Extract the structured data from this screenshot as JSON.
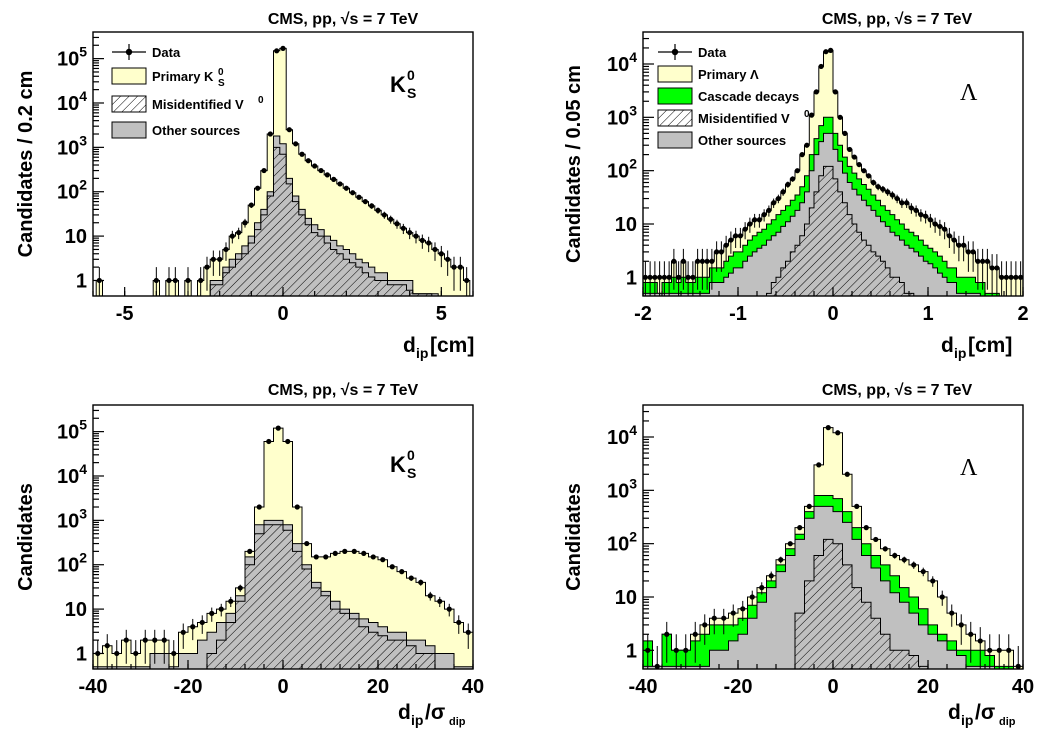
{
  "page_title_each": "CMS, pp, √s = 7 TeV",
  "colors": {
    "primary": "#ffffcc",
    "cascade": "#00ff00",
    "other": "#c0c0c0",
    "misid_hatch": "#000000",
    "data": "#000000"
  },
  "chart_data": [
    {
      "type": "area",
      "id": "ks-dip",
      "title": "CMS, pp, √s = 7 TeV",
      "species_label": "K0S",
      "xlabel_main": "d",
      "xlabel_sub": "ip",
      "xlabel_tail": " [cm]",
      "ylabel": "Candidates / 0.2 cm",
      "xlim": [
        -6,
        6
      ],
      "ylog": true,
      "ylim_exp": [
        -0.35,
        5.6
      ],
      "xticks": [
        -5,
        0,
        5
      ],
      "yticks": [
        "1",
        "10",
        "10^2",
        "10^3",
        "10^4",
        "10^5"
      ],
      "legend": [
        "Data",
        "Primary K0S",
        "Misidentified V0",
        "Other sources"
      ],
      "x": [
        -5.8,
        -5.6,
        -5.4,
        -5.2,
        -5.0,
        -4.8,
        -4.6,
        -4.4,
        -4.2,
        -4.0,
        -3.8,
        -3.6,
        -3.4,
        -3.2,
        -3.0,
        -2.8,
        -2.6,
        -2.4,
        -2.2,
        -2.0,
        -1.8,
        -1.6,
        -1.4,
        -1.2,
        -1.0,
        -0.8,
        -0.6,
        -0.4,
        -0.2,
        0.0,
        0.2,
        0.4,
        0.6,
        0.8,
        1.0,
        1.2,
        1.4,
        1.6,
        1.8,
        2.0,
        2.2,
        2.4,
        2.6,
        2.8,
        3.0,
        3.2,
        3.4,
        3.6,
        3.8,
        4.0,
        4.2,
        4.4,
        4.6,
        4.8,
        5.0,
        5.2,
        5.4,
        5.6,
        5.8
      ],
      "primary_total": [
        1,
        0,
        0,
        0,
        0,
        0,
        0,
        0,
        0,
        1,
        0,
        1,
        1,
        0,
        1,
        0,
        1,
        2,
        3,
        3,
        5,
        10,
        12,
        20,
        50,
        120,
        300,
        2000,
        150000,
        170000,
        2500,
        1200,
        700,
        500,
        380,
        300,
        240,
        190,
        150,
        120,
        95,
        75,
        60,
        48,
        38,
        30,
        24,
        19,
        15,
        12,
        10,
        8,
        7,
        5,
        4,
        3,
        2,
        2,
        1
      ],
      "other_total": [
        0,
        0,
        0,
        0,
        0,
        0,
        0,
        0,
        0,
        0,
        0,
        0,
        0,
        0,
        0,
        0,
        0,
        0,
        1,
        1,
        2,
        3,
        4,
        6,
        10,
        20,
        40,
        100,
        1800,
        1200,
        200,
        80,
        40,
        25,
        18,
        14,
        10,
        8,
        6,
        5,
        4,
        3,
        2.5,
        2,
        1.5,
        1.5,
        1,
        1,
        1,
        1,
        0.5,
        0.5,
        0.5,
        0.5,
        0,
        0,
        0,
        0,
        0
      ],
      "misid": [
        0,
        0,
        0,
        0,
        0,
        0,
        0,
        0,
        0,
        0,
        0,
        0,
        0,
        0,
        0,
        0,
        0,
        0,
        0.8,
        0.8,
        1.5,
        2,
        3,
        4,
        7,
        14,
        30,
        80,
        1000,
        700,
        150,
        60,
        30,
        18,
        12,
        10,
        7,
        5,
        4,
        3,
        2.5,
        2,
        1.5,
        1.2,
        1,
        1,
        0.8,
        0.8,
        0.8,
        0.6,
        0.5,
        0.5,
        0.5,
        0,
        0,
        0,
        0,
        0,
        0
      ],
      "data": [
        1,
        0,
        0,
        0,
        0,
        0,
        0,
        0,
        0,
        1,
        0,
        1,
        1,
        0,
        1,
        0,
        1,
        2,
        3,
        3,
        5,
        10,
        12,
        20,
        50,
        120,
        300,
        2000,
        150000,
        170000,
        2500,
        1200,
        700,
        500,
        380,
        300,
        240,
        190,
        150,
        120,
        95,
        75,
        60,
        48,
        38,
        30,
        24,
        19,
        15,
        12,
        10,
        8,
        7,
        5,
        4,
        3,
        2,
        2,
        1
      ]
    },
    {
      "type": "area",
      "id": "lambda-dip",
      "title": "CMS, pp, √s = 7 TeV",
      "species_label": "Λ",
      "xlabel_main": "d",
      "xlabel_sub": "ip",
      "xlabel_tail": " [cm]",
      "ylabel": "Candidates / 0.05 cm",
      "xlim": [
        -2,
        2
      ],
      "ylog": true,
      "ylim_exp": [
        -0.35,
        4.6
      ],
      "xticks": [
        -2,
        -1,
        0,
        1,
        2
      ],
      "yticks": [
        "1",
        "10",
        "10^2",
        "10^3",
        "10^4"
      ],
      "legend": [
        "Data",
        "Primary Λ",
        "Cascade decays",
        "Misidentified V0",
        "Other sources"
      ],
      "x": [
        -1.975,
        -1.925,
        -1.875,
        -1.825,
        -1.775,
        -1.725,
        -1.675,
        -1.625,
        -1.575,
        -1.525,
        -1.475,
        -1.425,
        -1.375,
        -1.325,
        -1.275,
        -1.225,
        -1.175,
        -1.125,
        -1.075,
        -1.025,
        -0.975,
        -0.925,
        -0.875,
        -0.825,
        -0.775,
        -0.725,
        -0.675,
        -0.625,
        -0.575,
        -0.525,
        -0.475,
        -0.425,
        -0.375,
        -0.325,
        -0.275,
        -0.225,
        -0.175,
        -0.125,
        -0.075,
        -0.025,
        0.025,
        0.075,
        0.125,
        0.175,
        0.225,
        0.275,
        0.325,
        0.375,
        0.425,
        0.475,
        0.525,
        0.575,
        0.625,
        0.675,
        0.725,
        0.775,
        0.825,
        0.875,
        0.925,
        0.975,
        1.025,
        1.075,
        1.125,
        1.175,
        1.225,
        1.275,
        1.325,
        1.375,
        1.425,
        1.475,
        1.525,
        1.575,
        1.625,
        1.675,
        1.725,
        1.775,
        1.825,
        1.875,
        1.925,
        1.975
      ],
      "primary_total": [
        1,
        1,
        1,
        1,
        1,
        1,
        2,
        1,
        2,
        1,
        1,
        2,
        2,
        2,
        2,
        3,
        3,
        4,
        5,
        6,
        6,
        8,
        10,
        12,
        12,
        15,
        18,
        25,
        30,
        40,
        55,
        70,
        100,
        200,
        300,
        1100,
        3000,
        9000,
        17000,
        18000,
        3000,
        1000,
        500,
        250,
        180,
        130,
        100,
        80,
        60,
        50,
        45,
        40,
        35,
        30,
        25,
        25,
        20,
        18,
        15,
        14,
        12,
        10,
        9,
        8,
        6,
        5,
        4,
        4,
        3,
        3,
        2,
        2,
        2,
        1.5,
        1.5,
        1,
        1,
        1,
        1,
        1
      ],
      "cascade_total": [
        0.8,
        0.8,
        0.8,
        0.5,
        0.8,
        0.8,
        1,
        0.8,
        1,
        0.8,
        0.8,
        1,
        1,
        1,
        1.5,
        1.5,
        1.5,
        2,
        2.5,
        3,
        3,
        4,
        5,
        6,
        7,
        8,
        10,
        12,
        15,
        18,
        22,
        28,
        35,
        50,
        80,
        200,
        400,
        700,
        1000,
        1000,
        500,
        300,
        180,
        120,
        90,
        70,
        55,
        45,
        35,
        28,
        22,
        18,
        15,
        12,
        10,
        8,
        7,
        6,
        5,
        4,
        3.5,
        3,
        2.5,
        2,
        1.5,
        1.5,
        1,
        1,
        1,
        1,
        0.8,
        0.8,
        0.5,
        0.5,
        0.5,
        0,
        0,
        0,
        0,
        0
      ],
      "other_total": [
        0.5,
        0.5,
        0.5,
        0.5,
        0.5,
        0.5,
        0.5,
        0.5,
        0.5,
        0.5,
        0.5,
        0.5,
        0.5,
        0.5,
        0.8,
        0.8,
        0.8,
        1,
        1.2,
        1.5,
        1.5,
        2,
        2.5,
        3,
        3.5,
        4,
        5,
        6,
        7,
        9,
        11,
        14,
        18,
        25,
        40,
        100,
        200,
        350,
        500,
        500,
        250,
        150,
        90,
        60,
        45,
        35,
        28,
        22,
        18,
        14,
        11,
        9,
        7,
        6,
        5,
        4,
        3.5,
        3,
        2.5,
        2,
        1.8,
        1.5,
        1.2,
        1,
        0.8,
        0.8,
        0.5,
        0.5,
        0.5,
        0.5,
        0.5,
        0,
        0,
        0,
        0,
        0,
        0,
        0,
        0,
        0
      ],
      "misid": [
        0,
        0,
        0,
        0,
        0,
        0,
        0,
        0,
        0,
        0,
        0,
        0,
        0,
        0,
        0,
        0,
        0,
        0,
        0,
        0,
        0,
        0,
        0,
        0,
        0,
        0,
        0.5,
        0.8,
        1,
        1.5,
        2,
        3,
        4,
        6,
        10,
        20,
        40,
        80,
        120,
        120,
        70,
        40,
        25,
        15,
        10,
        7,
        5,
        4,
        3,
        2.5,
        2,
        1.5,
        1,
        1,
        0.8,
        0.5,
        0.5,
        0,
        0,
        0,
        0,
        0,
        0,
        0,
        0,
        0,
        0,
        0,
        0,
        0,
        0,
        0,
        0,
        0,
        0,
        0,
        0,
        0,
        0,
        0
      ],
      "data": [
        1,
        1,
        1,
        1,
        1,
        1,
        2,
        1,
        2,
        1,
        1,
        2,
        2,
        2,
        2,
        3,
        3,
        4,
        5,
        6,
        6,
        8,
        10,
        12,
        12,
        15,
        18,
        25,
        30,
        40,
        55,
        70,
        100,
        200,
        300,
        1100,
        3000,
        9000,
        17000,
        18000,
        3000,
        1000,
        500,
        250,
        180,
        130,
        100,
        80,
        60,
        50,
        45,
        40,
        35,
        30,
        25,
        25,
        20,
        18,
        15,
        14,
        12,
        10,
        9,
        8,
        6,
        5,
        4,
        4,
        3,
        3,
        2,
        2,
        2,
        1.5,
        1.5,
        1,
        1,
        1,
        1,
        1
      ]
    },
    {
      "type": "area",
      "id": "ks-sig",
      "title": "CMS, pp, √s = 7 TeV",
      "species_label": "K0S",
      "xlabel_main": "d",
      "xlabel_sub": "ip",
      "xlabel_tail": "/σ",
      "xlabel_tail_sub": "dip",
      "ylabel": "Candidates",
      "xlim": [
        -40,
        40
      ],
      "ylog": true,
      "ylim_exp": [
        -0.35,
        5.6
      ],
      "xticks": [
        -40,
        -20,
        0,
        20,
        40
      ],
      "yticks": [
        "1",
        "10",
        "10^2",
        "10^3",
        "10^4",
        "10^5"
      ],
      "x": [
        -39,
        -37,
        -35,
        -33,
        -31,
        -29,
        -27,
        -25,
        -23,
        -21,
        -19,
        -17,
        -15,
        -13,
        -11,
        -9,
        -7,
        -5,
        -3,
        -1,
        1,
        3,
        5,
        7,
        9,
        11,
        13,
        15,
        17,
        19,
        21,
        23,
        25,
        27,
        29,
        31,
        33,
        35,
        37,
        39
      ],
      "primary_total": [
        1,
        1.5,
        1,
        2,
        1,
        2,
        2,
        2,
        1,
        3,
        4,
        5,
        8,
        10,
        15,
        30,
        200,
        2000,
        60000,
        120000,
        60000,
        2000,
        300,
        150,
        150,
        180,
        200,
        200,
        180,
        150,
        130,
        90,
        70,
        50,
        40,
        20,
        15,
        10,
        5,
        3
      ],
      "other_total": [
        0.5,
        0.5,
        0.5,
        0.5,
        0.5,
        0.5,
        1,
        1,
        0.5,
        1,
        1,
        2,
        3,
        5,
        8,
        20,
        150,
        800,
        1000,
        1000,
        800,
        300,
        100,
        40,
        25,
        15,
        10,
        8,
        6,
        5,
        4,
        3,
        3,
        2,
        2,
        1.5,
        1,
        1,
        0.5,
        0.5
      ],
      "misid": [
        0,
        0,
        0,
        0,
        0,
        0,
        0,
        0,
        0,
        0,
        0,
        0,
        1,
        2,
        5,
        15,
        100,
        500,
        800,
        800,
        600,
        200,
        80,
        30,
        20,
        10,
        8,
        6,
        4,
        3,
        2.5,
        2,
        2,
        1.5,
        1,
        1,
        0,
        0,
        0,
        0
      ],
      "data": [
        1,
        1.5,
        1,
        2,
        1,
        2,
        2,
        2,
        1,
        3,
        4,
        5,
        8,
        10,
        15,
        30,
        200,
        2000,
        60000,
        120000,
        60000,
        2000,
        300,
        150,
        150,
        180,
        200,
        200,
        180,
        150,
        130,
        90,
        70,
        50,
        40,
        20,
        15,
        10,
        5,
        3
      ]
    },
    {
      "type": "area",
      "id": "lambda-sig",
      "title": "CMS, pp, √s = 7 TeV",
      "species_label": "Λ",
      "xlabel_main": "d",
      "xlabel_sub": "ip",
      "xlabel_tail": "/σ",
      "xlabel_tail_sub": "dip",
      "ylabel": "Candidates",
      "xlim": [
        -40,
        40
      ],
      "ylog": true,
      "ylim_exp": [
        -0.35,
        4.6
      ],
      "xticks": [
        -40,
        -20,
        0,
        20,
        40
      ],
      "yticks": [
        "1",
        "10",
        "10^2",
        "10^3",
        "10^4"
      ],
      "x": [
        -39,
        -37,
        -35,
        -33,
        -31,
        -29,
        -27,
        -25,
        -23,
        -21,
        -19,
        -17,
        -15,
        -13,
        -11,
        -9,
        -7,
        -5,
        -3,
        -1,
        1,
        3,
        5,
        7,
        9,
        11,
        13,
        15,
        17,
        19,
        21,
        23,
        25,
        27,
        29,
        31,
        33,
        35,
        37,
        39
      ],
      "primary_total": [
        1,
        0.5,
        2,
        1,
        1,
        2,
        3,
        4,
        4,
        5,
        6,
        10,
        15,
        25,
        50,
        100,
        200,
        500,
        3000,
        15000,
        12000,
        2000,
        500,
        200,
        120,
        80,
        60,
        50,
        40,
        30,
        20,
        10,
        5,
        3,
        2,
        1.5,
        1,
        1,
        1,
        0.5
      ],
      "cascade_total": [
        1.5,
        0.5,
        2,
        1,
        1,
        1.5,
        2,
        3,
        3,
        3,
        4,
        7,
        12,
        20,
        40,
        80,
        150,
        400,
        800,
        800,
        700,
        400,
        200,
        100,
        60,
        40,
        25,
        15,
        10,
        6,
        3,
        2,
        1.5,
        1,
        1,
        1,
        0.8,
        0.5,
        0.5,
        0
      ],
      "other_total": [
        0.5,
        0.5,
        0.5,
        0.5,
        0.5,
        0.5,
        0.5,
        1,
        1,
        1.5,
        2,
        4,
        8,
        15,
        30,
        60,
        120,
        300,
        500,
        500,
        400,
        250,
        120,
        60,
        35,
        20,
        12,
        8,
        5,
        3,
        2,
        1.5,
        1,
        0.8,
        0.5,
        0.5,
        0.5,
        0,
        0,
        0
      ],
      "misid": [
        0,
        0,
        0,
        0,
        0,
        0,
        0,
        0,
        0,
        0,
        0,
        0,
        0,
        0,
        0,
        0,
        5,
        20,
        60,
        120,
        100,
        40,
        15,
        8,
        4,
        2,
        1,
        1,
        0.8,
        0.5,
        0,
        0,
        0,
        0,
        0,
        0,
        0,
        0,
        0,
        0
      ],
      "data": [
        1,
        0.5,
        2,
        1,
        1,
        2,
        3,
        4,
        4,
        5,
        6,
        10,
        15,
        25,
        50,
        100,
        200,
        500,
        3000,
        15000,
        12000,
        2000,
        500,
        200,
        120,
        80,
        60,
        50,
        40,
        30,
        20,
        10,
        5,
        3,
        2,
        1.5,
        1,
        1,
        1,
        0.5
      ]
    }
  ]
}
